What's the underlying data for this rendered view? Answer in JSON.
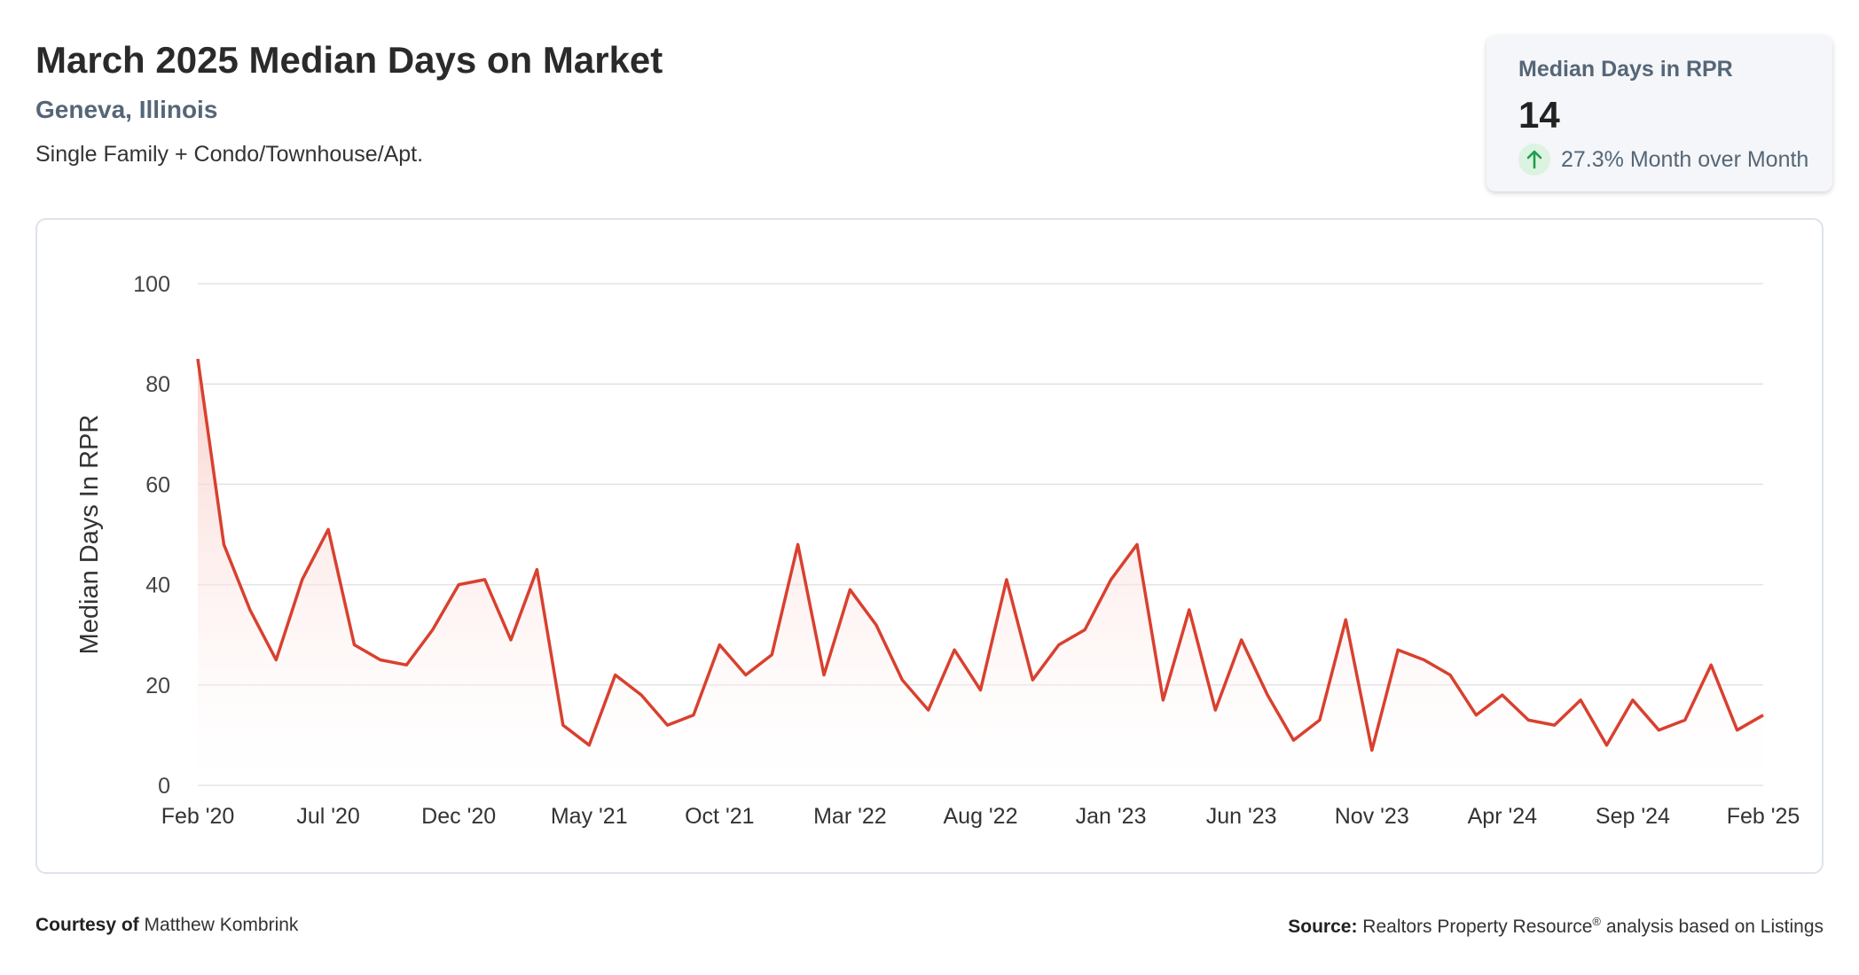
{
  "header": {
    "title": "March 2025 Median Days on Market",
    "location": "Geneva, Illinois",
    "subtitle": "Single Family + Condo/Townhouse/Apt."
  },
  "stat_card": {
    "label": "Median Days in RPR",
    "value": "14",
    "change_text": "27.3% Month over Month",
    "change_icon": "arrow-up-icon",
    "change_color": "#1e9e4a"
  },
  "footer": {
    "courtesy_label": "Courtesy of",
    "courtesy_name": "Matthew Kombrink",
    "source_label": "Source:",
    "source_text": "Realtors Property Resource",
    "source_sup": "®",
    "source_suffix": "analysis based on Listings"
  },
  "colors": {
    "line": "#d9402f",
    "area_top": "#f8c9c3",
    "grid": "#e3e3e3"
  },
  "chart_data": {
    "type": "area",
    "title": "",
    "xlabel": "",
    "ylabel": "Median Days In RPR",
    "ylim": [
      0,
      100
    ],
    "yticks": [
      0,
      20,
      40,
      60,
      80,
      100
    ],
    "x_tick_labels": [
      "Feb '20",
      "Jul '20",
      "Dec '20",
      "May '21",
      "Oct '21",
      "Mar '22",
      "Aug '22",
      "Jan '23",
      "Jun '23",
      "Nov '23",
      "Apr '24",
      "Sep '24",
      "Feb '25"
    ],
    "x_tick_every": 5,
    "grid": true,
    "series": [
      {
        "values": [
          85,
          48,
          35,
          25,
          41,
          51,
          28,
          25,
          24,
          31,
          40,
          41,
          29,
          43,
          12,
          8,
          22,
          18,
          12,
          14,
          28,
          22,
          26,
          48,
          22,
          39,
          32,
          21,
          15,
          27,
          19,
          41,
          21,
          28,
          31,
          41,
          48,
          17,
          35,
          15,
          29,
          18,
          9,
          13,
          33,
          7,
          27,
          25,
          22,
          14,
          18,
          13,
          12,
          17,
          8,
          17,
          11,
          13,
          24,
          11,
          14
        ]
      }
    ]
  }
}
